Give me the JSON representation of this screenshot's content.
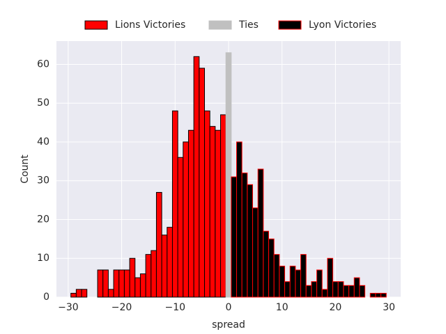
{
  "chart_data": {
    "type": "histogram",
    "xlabel": "spread",
    "ylabel": "Count",
    "xlim": [
      -32.2,
      32.2
    ],
    "ylim": [
      0,
      66
    ],
    "xticks": [
      {
        "value": -30,
        "label": "−30"
      },
      {
        "value": -20,
        "label": "−20"
      },
      {
        "value": -10,
        "label": "−10"
      },
      0,
      10,
      20,
      30
    ],
    "yticks": [
      0,
      10,
      20,
      30,
      40,
      50,
      60
    ],
    "grid": true,
    "legend": "top",
    "series": [
      {
        "name": "Lions Victories",
        "color": "#ff0000",
        "edgecolor": "#000000",
        "bins": [
          -29.5,
          -28.5,
          -27.5,
          -26.5,
          -25.5,
          -24.5,
          -23.5,
          -22.5,
          -21.5,
          -20.5,
          -19.5,
          -18.5,
          -17.5,
          -16.5,
          -15.5,
          -14.5,
          -13.5,
          -12.5,
          -11.5,
          -10.5,
          -9.5,
          -8.5,
          -7.5,
          -6.5,
          -5.5,
          -4.5,
          -3.5,
          -2.5,
          -1.5,
          -0.5
        ],
        "values": [
          1,
          2,
          2,
          0,
          0,
          7,
          7,
          2,
          7,
          7,
          7,
          10,
          5,
          6,
          11,
          12,
          27,
          16,
          18,
          48,
          36,
          40,
          43,
          62,
          59,
          48,
          44,
          43,
          47
        ]
      },
      {
        "name": "Ties",
        "color": "#c0c0c0",
        "edgecolor": "#c0c0c0",
        "bins": [
          -0.5,
          0.5
        ],
        "values": [
          63
        ]
      },
      {
        "name": "Lyon Victories",
        "color": "#000000",
        "edgecolor": "#ff0000",
        "bins": [
          0.5,
          1.5,
          2.5,
          3.5,
          4.5,
          5.5,
          6.5,
          7.5,
          8.5,
          9.5,
          10.5,
          11.5,
          12.5,
          13.5,
          14.5,
          15.5,
          16.5,
          17.5,
          18.5,
          19.5,
          20.5,
          21.5,
          22.5,
          23.5,
          24.5,
          25.5,
          26.5,
          27.5,
          28.5,
          29.5
        ],
        "values": [
          31,
          40,
          32,
          29,
          23,
          33,
          17,
          15,
          11,
          8,
          4,
          8,
          7,
          11,
          3,
          4,
          7,
          2,
          10,
          4,
          4,
          3,
          3,
          5,
          3,
          0,
          1,
          1,
          1
        ]
      }
    ]
  }
}
